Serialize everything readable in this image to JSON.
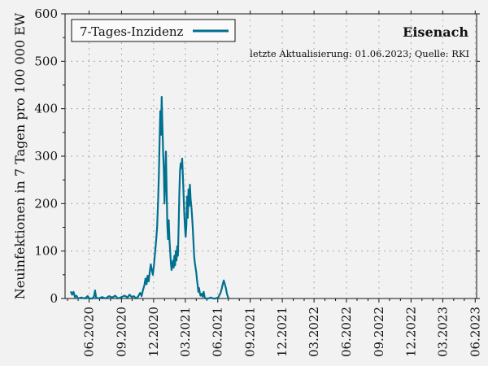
{
  "chart_data": {
    "type": "line",
    "title": "Eisenach",
    "subtitle": "letzte Aktualisierung: 01.06.2023; Quelle: RKI",
    "ylabel": "Neuinfektionen in 7 Tagen pro 100 000 EW",
    "xlabel": "",
    "ylim": [
      0,
      600
    ],
    "yticks": [
      "0",
      "100",
      "200",
      "300",
      "400",
      "500",
      "600"
    ],
    "xlim": [
      "2020-03-25",
      "2023-06-05"
    ],
    "xticks": [
      {
        "date": "2020-06-01",
        "label": "06.2020"
      },
      {
        "date": "2020-09-01",
        "label": "09.2020"
      },
      {
        "date": "2020-12-01",
        "label": "12.2020"
      },
      {
        "date": "2021-03-01",
        "label": "03.2021"
      },
      {
        "date": "2021-06-01",
        "label": "06.2021"
      },
      {
        "date": "2021-09-01",
        "label": "09.2021"
      },
      {
        "date": "2021-12-01",
        "label": "12.2021"
      },
      {
        "date": "2022-03-01",
        "label": "03.2022"
      },
      {
        "date": "2022-06-01",
        "label": "06.2022"
      },
      {
        "date": "2022-09-01",
        "label": "09.2022"
      },
      {
        "date": "2022-12-01",
        "label": "12.2022"
      },
      {
        "date": "2023-03-01",
        "label": "03.2023"
      },
      {
        "date": "2023-06-01",
        "label": "06.2023"
      }
    ],
    "grid": true,
    "legend": {
      "placement": "top-left"
    },
    "series": [
      {
        "name": "7-Tages-Inzidenz",
        "color": "#00708f",
        "points": [
          [
            "2020-04-10",
            15
          ],
          [
            "2020-04-14",
            8
          ],
          [
            "2020-04-18",
            14
          ],
          [
            "2020-04-22",
            3
          ],
          [
            "2020-04-26",
            6
          ],
          [
            "2020-05-01",
            0
          ],
          [
            "2020-05-10",
            2
          ],
          [
            "2020-05-20",
            0
          ],
          [
            "2020-05-28",
            5
          ],
          [
            "2020-06-02",
            0
          ],
          [
            "2020-06-10",
            0
          ],
          [
            "2020-06-15",
            4
          ],
          [
            "2020-06-18",
            17
          ],
          [
            "2020-06-21",
            2
          ],
          [
            "2020-06-28",
            0
          ],
          [
            "2020-07-08",
            3
          ],
          [
            "2020-07-18",
            0
          ],
          [
            "2020-07-28",
            5
          ],
          [
            "2020-08-06",
            2
          ],
          [
            "2020-08-14",
            6
          ],
          [
            "2020-08-22",
            0
          ],
          [
            "2020-09-01",
            3
          ],
          [
            "2020-09-10",
            6
          ],
          [
            "2020-09-18",
            2
          ],
          [
            "2020-09-24",
            8
          ],
          [
            "2020-09-30",
            3
          ],
          [
            "2020-10-06",
            5
          ],
          [
            "2020-10-12",
            0
          ],
          [
            "2020-10-18",
            4
          ],
          [
            "2020-10-24",
            12
          ],
          [
            "2020-10-28",
            5
          ],
          [
            "2020-11-01",
            18
          ],
          [
            "2020-11-05",
            28
          ],
          [
            "2020-11-08",
            42
          ],
          [
            "2020-11-11",
            30
          ],
          [
            "2020-11-14",
            48
          ],
          [
            "2020-11-17",
            36
          ],
          [
            "2020-11-20",
            55
          ],
          [
            "2020-11-23",
            72
          ],
          [
            "2020-11-26",
            60
          ],
          [
            "2020-11-29",
            50
          ],
          [
            "2020-12-02",
            70
          ],
          [
            "2020-12-05",
            95
          ],
          [
            "2020-12-08",
            120
          ],
          [
            "2020-12-11",
            150
          ],
          [
            "2020-12-14",
            210
          ],
          [
            "2020-12-16",
            260
          ],
          [
            "2020-12-18",
            330
          ],
          [
            "2020-12-20",
            395
          ],
          [
            "2020-12-22",
            345
          ],
          [
            "2020-12-24",
            425
          ],
          [
            "2020-12-26",
            365
          ],
          [
            "2020-12-28",
            310
          ],
          [
            "2020-12-30",
            270
          ],
          [
            "2021-01-01",
            200
          ],
          [
            "2021-01-03",
            260
          ],
          [
            "2021-01-05",
            310
          ],
          [
            "2021-01-07",
            230
          ],
          [
            "2021-01-09",
            155
          ],
          [
            "2021-01-11",
            125
          ],
          [
            "2021-01-13",
            165
          ],
          [
            "2021-01-15",
            125
          ],
          [
            "2021-01-17",
            100
          ],
          [
            "2021-01-19",
            75
          ],
          [
            "2021-01-21",
            60
          ],
          [
            "2021-01-23",
            70
          ],
          [
            "2021-01-25",
            80
          ],
          [
            "2021-01-27",
            65
          ],
          [
            "2021-01-29",
            90
          ],
          [
            "2021-01-31",
            70
          ],
          [
            "2021-02-02",
            100
          ],
          [
            "2021-02-04",
            80
          ],
          [
            "2021-02-06",
            110
          ],
          [
            "2021-02-08",
            90
          ],
          [
            "2021-02-10",
            150
          ],
          [
            "2021-02-12",
            220
          ],
          [
            "2021-02-14",
            270
          ],
          [
            "2021-02-16",
            285
          ],
          [
            "2021-02-18",
            275
          ],
          [
            "2021-02-20",
            295
          ],
          [
            "2021-02-22",
            260
          ],
          [
            "2021-02-24",
            220
          ],
          [
            "2021-02-26",
            180
          ],
          [
            "2021-02-28",
            150
          ],
          [
            "2021-03-02",
            130
          ],
          [
            "2021-03-04",
            155
          ],
          [
            "2021-03-06",
            215
          ],
          [
            "2021-03-08",
            170
          ],
          [
            "2021-03-10",
            230
          ],
          [
            "2021-03-12",
            195
          ],
          [
            "2021-03-14",
            240
          ],
          [
            "2021-03-16",
            210
          ],
          [
            "2021-03-18",
            195
          ],
          [
            "2021-03-20",
            175
          ],
          [
            "2021-03-22",
            150
          ],
          [
            "2021-03-24",
            120
          ],
          [
            "2021-03-26",
            90
          ],
          [
            "2021-03-28",
            75
          ],
          [
            "2021-03-30",
            65
          ],
          [
            "2021-04-01",
            55
          ],
          [
            "2021-04-03",
            40
          ],
          [
            "2021-04-05",
            28
          ],
          [
            "2021-04-07",
            14
          ],
          [
            "2021-04-09",
            22
          ],
          [
            "2021-04-11",
            12
          ],
          [
            "2021-04-13",
            6
          ],
          [
            "2021-04-16",
            10
          ],
          [
            "2021-04-19",
            4
          ],
          [
            "2021-04-22",
            14
          ],
          [
            "2021-04-25",
            2
          ],
          [
            "2021-04-28",
            0
          ],
          [
            "2021-05-05",
            0
          ],
          [
            "2021-05-12",
            2
          ],
          [
            "2021-05-19",
            0
          ],
          [
            "2021-05-26",
            0
          ],
          [
            "2021-06-02",
            2
          ],
          [
            "2021-06-09",
            12
          ],
          [
            "2021-06-12",
            20
          ],
          [
            "2021-06-15",
            30
          ],
          [
            "2021-06-18",
            38
          ],
          [
            "2021-06-21",
            30
          ],
          [
            "2021-06-24",
            22
          ],
          [
            "2021-06-27",
            10
          ],
          [
            "2021-06-30",
            3
          ],
          [
            "2021-07-02",
            0
          ]
        ]
      }
    ]
  }
}
